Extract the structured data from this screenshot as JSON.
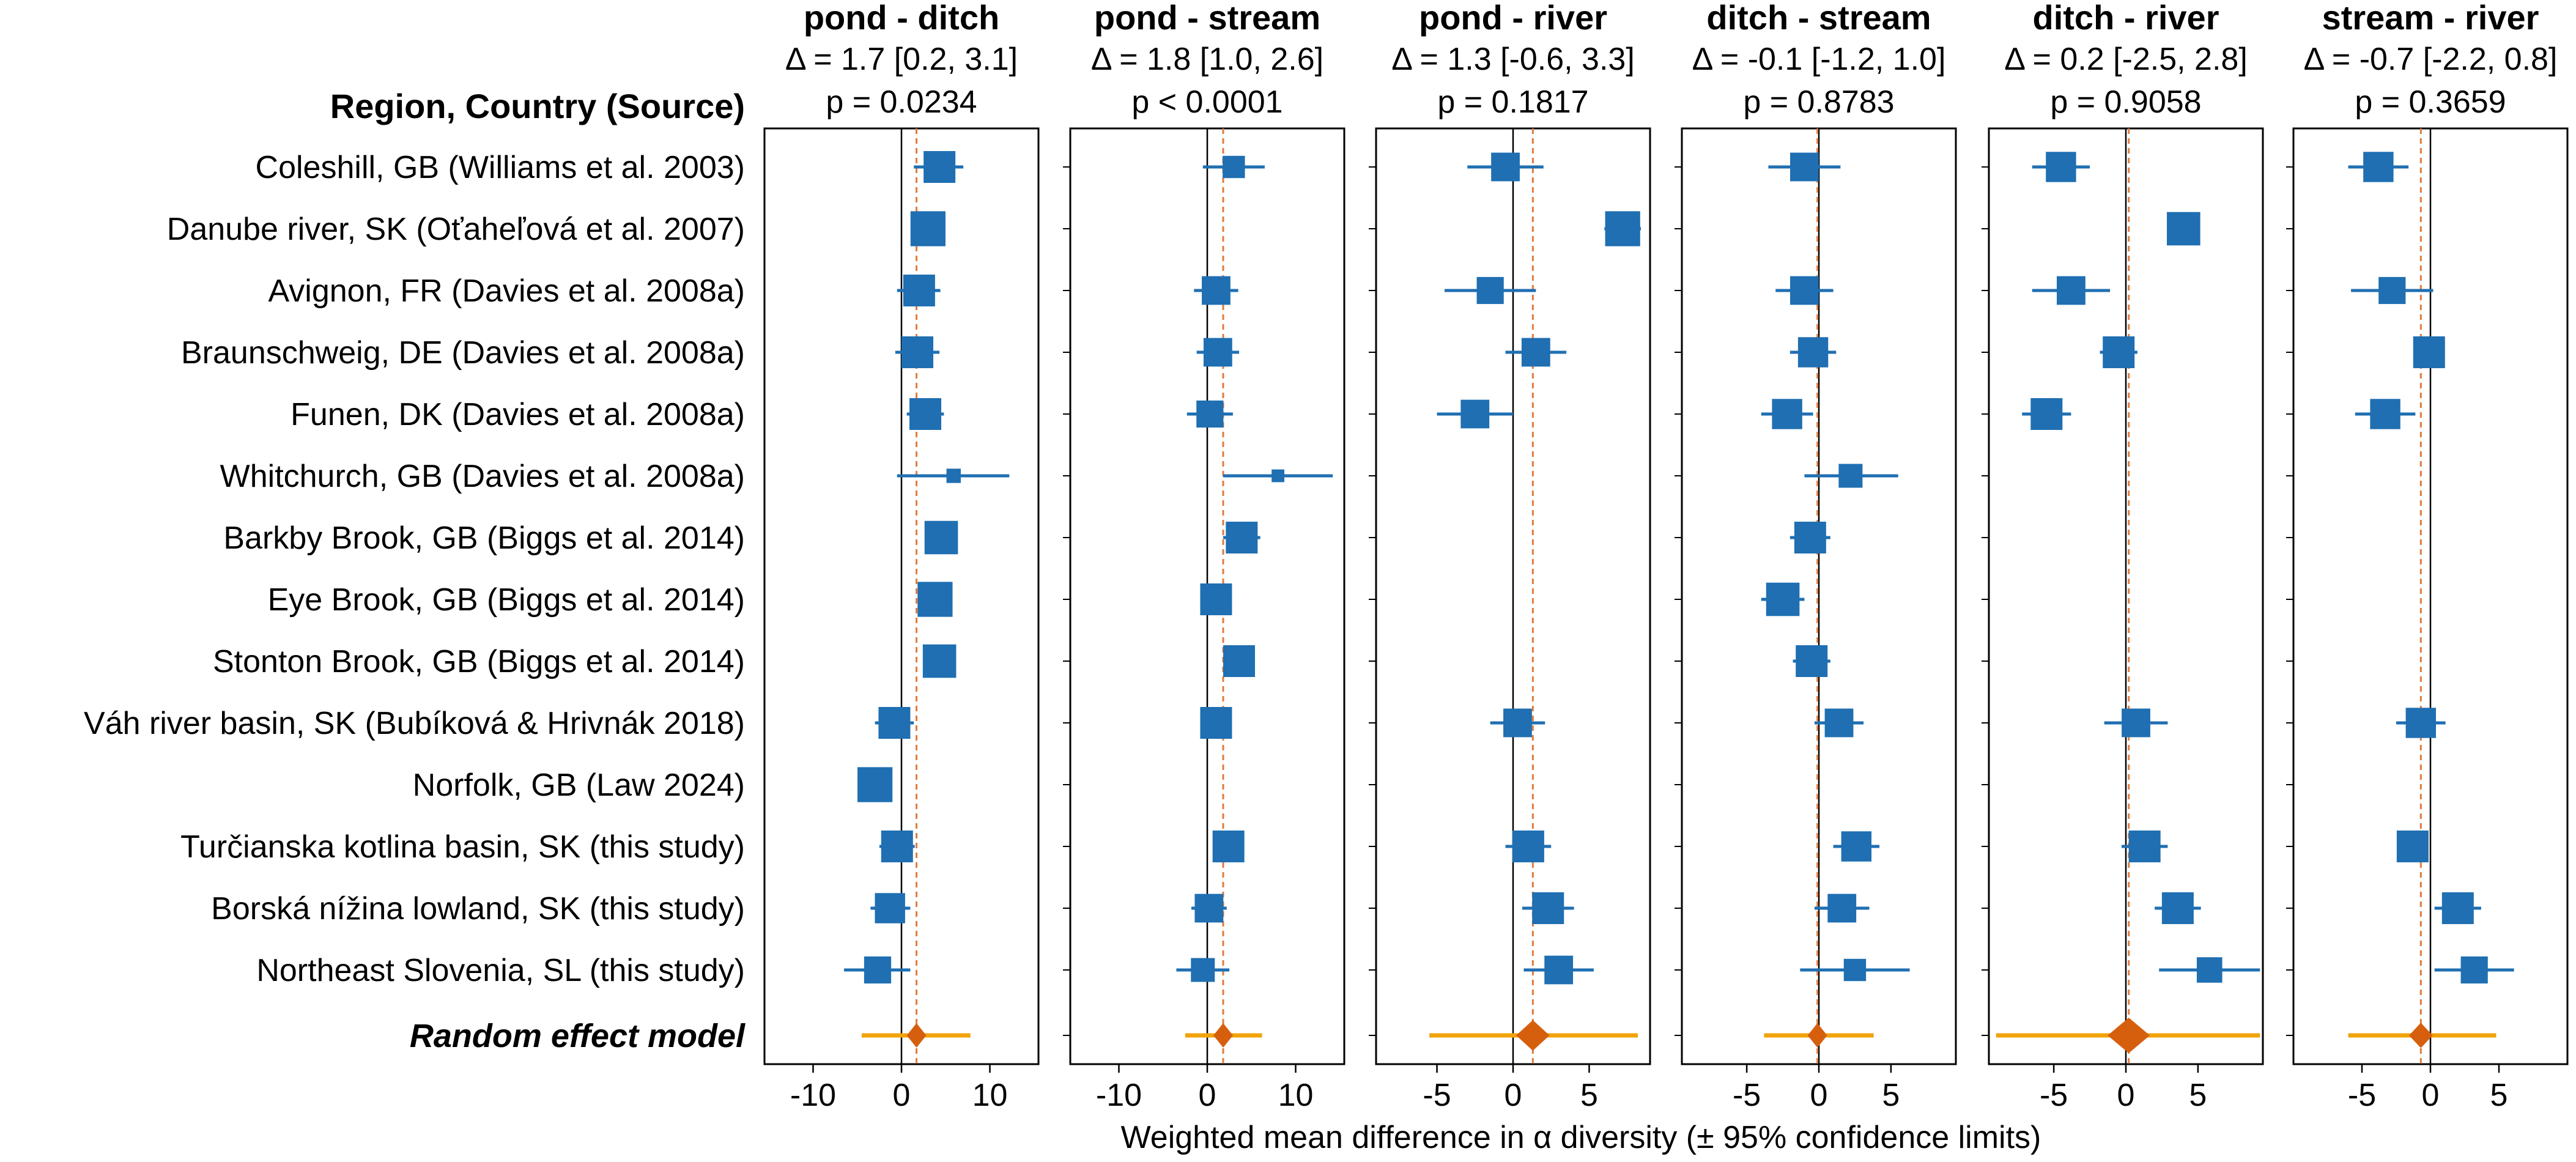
{
  "chart_data": {
    "type": "forest",
    "row_header": "Region, Country (Source)",
    "xlabel": "Weighted mean difference in α diversity (± 95% confidence limits)",
    "rows": [
      "Coleshill, GB (Williams et al. 2003)",
      "Danube river, SK (Oťaheľová et al. 2007)",
      "Avignon, FR (Davies et al. 2008a)",
      "Braunschweig, DE (Davies et al. 2008a)",
      "Funen, DK (Davies et al. 2008a)",
      "Whitchurch, GB (Davies et al. 2008a)",
      "Barkby Brook, GB (Biggs et al. 2014)",
      "Eye Brook, GB (Biggs et al. 2014)",
      "Stonton Brook, GB (Biggs et al. 2014)",
      "Váh river basin, SK (Bubíková & Hrivnák 2018)",
      "Norfolk, GB  (Law 2024)",
      "Turčianska kotlina basin, SK  (this study)",
      "Borská nížina lowland, SK (this study)",
      "Northeast Slovenia, SL (this study)"
    ],
    "model_label": "Random effect model",
    "colors": {
      "study": "#1f6fb2",
      "model_fill": "#d65f0e",
      "model_ci": "#f0a30a",
      "pooled_line": "#e07b3c",
      "zero_line": "#000000"
    },
    "panels": [
      {
        "title": "pond - ditch",
        "delta": "Δ = 1.7 [0.2, 3.1]",
        "p": "p = 0.0234",
        "xlim": [
          -15.5,
          15.5
        ],
        "ticks": [
          -10,
          0,
          10
        ],
        "pooled": 1.7,
        "model": {
          "est": 1.7,
          "ci": [
            -4.5,
            7.8
          ]
        },
        "studies": [
          {
            "est": 4.3,
            "lo": 1.4,
            "hi": 7.0,
            "w": 1
          },
          {
            "est": 3.0,
            "lo": 1.6,
            "hi": 4.4,
            "w": 1.1
          },
          {
            "est": 2.0,
            "lo": -0.5,
            "hi": 4.4,
            "w": 1
          },
          {
            "est": 1.8,
            "lo": -0.7,
            "hi": 4.3,
            "w": 1
          },
          {
            "est": 2.7,
            "lo": 0.6,
            "hi": 4.8,
            "w": 1
          },
          {
            "est": 5.9,
            "lo": -0.5,
            "hi": 12.2,
            "w": 0.45
          },
          {
            "est": 4.5,
            "lo": 3.0,
            "hi": 6.0,
            "w": 1.05
          },
          {
            "est": 3.8,
            "lo": 2.5,
            "hi": 5.1,
            "w": 1.1
          },
          {
            "est": 4.3,
            "lo": 3.0,
            "hi": 5.6,
            "w": 1.05
          },
          {
            "est": -0.8,
            "lo": -3.0,
            "hi": 1.4,
            "w": 1
          },
          {
            "est": -3.0,
            "lo": -3.4,
            "hi": -2.6,
            "w": 1.1
          },
          {
            "est": -0.5,
            "lo": -2.5,
            "hi": 1.5,
            "w": 1
          },
          {
            "est": -1.3,
            "lo": -3.5,
            "hi": 1.0,
            "w": 0.95
          },
          {
            "est": -2.7,
            "lo": -6.5,
            "hi": 1.0,
            "w": 0.85
          }
        ]
      },
      {
        "title": "pond - stream",
        "delta": "Δ = 1.8 [1.0, 2.6]",
        "p": "p < 0.0001",
        "xlim": [
          -15.5,
          15.5
        ],
        "ticks": [
          -10,
          0,
          10
        ],
        "pooled": 1.8,
        "model": {
          "est": 1.8,
          "ci": [
            -2.5,
            6.2
          ]
        },
        "studies": [
          {
            "est": 3.0,
            "lo": -0.5,
            "hi": 6.5,
            "w": 0.7
          },
          null,
          {
            "est": 1.0,
            "lo": -1.5,
            "hi": 3.5,
            "w": 0.9
          },
          {
            "est": 1.2,
            "lo": -1.2,
            "hi": 3.6,
            "w": 0.9
          },
          {
            "est": 0.3,
            "lo": -2.3,
            "hi": 2.9,
            "w": 0.85
          },
          {
            "est": 8.0,
            "lo": 1.8,
            "hi": 14.2,
            "w": 0.4
          },
          {
            "est": 3.9,
            "lo": 1.8,
            "hi": 6.0,
            "w": 1
          },
          {
            "est": 1.0,
            "lo": -0.8,
            "hi": 2.8,
            "w": 1
          },
          {
            "est": 3.6,
            "lo": 1.8,
            "hi": 5.4,
            "w": 1
          },
          {
            "est": 1.0,
            "lo": -0.4,
            "hi": 2.4,
            "w": 1
          },
          null,
          {
            "est": 2.4,
            "lo": 0.9,
            "hi": 3.9,
            "w": 1
          },
          {
            "est": 0.2,
            "lo": -1.8,
            "hi": 2.2,
            "w": 0.9
          },
          {
            "est": -0.5,
            "lo": -3.5,
            "hi": 2.5,
            "w": 0.75
          }
        ]
      },
      {
        "title": "pond - river",
        "delta": "Δ = 1.3 [-0.6, 3.3]",
        "p": "p = 0.1817",
        "xlim": [
          -9,
          9
        ],
        "ticks": [
          -5,
          0,
          5
        ],
        "pooled": 1.3,
        "model": {
          "est": 1.3,
          "ci": [
            -5.5,
            8.2
          ]
        },
        "studies": [
          {
            "est": -0.5,
            "lo": -3.0,
            "hi": 2.0,
            "w": 0.9
          },
          {
            "est": 7.2,
            "lo": 6.0,
            "hi": 8.4,
            "w": 1.1
          },
          {
            "est": -1.5,
            "lo": -4.5,
            "hi": 1.5,
            "w": 0.85
          },
          {
            "est": 1.5,
            "lo": -0.5,
            "hi": 3.5,
            "w": 0.9
          },
          {
            "est": -2.5,
            "lo": -5.0,
            "hi": 0.0,
            "w": 0.9
          },
          null,
          null,
          null,
          null,
          {
            "est": 0.3,
            "lo": -1.5,
            "hi": 2.1,
            "w": 0.9
          },
          null,
          {
            "est": 1.0,
            "lo": -0.5,
            "hi": 2.5,
            "w": 1
          },
          {
            "est": 2.3,
            "lo": 0.6,
            "hi": 4.0,
            "w": 1
          },
          {
            "est": 3.0,
            "lo": 0.7,
            "hi": 5.3,
            "w": 0.9
          }
        ]
      },
      {
        "title": "ditch - stream",
        "delta": "Δ = -0.1 [-1.2, 1.0]",
        "p": "p = 0.8783",
        "xlim": [
          -9.5,
          9.5
        ],
        "ticks": [
          -5,
          0,
          5
        ],
        "pooled": -0.1,
        "model": {
          "est": -0.1,
          "ci": [
            -3.8,
            3.8
          ]
        },
        "studies": [
          {
            "est": -1.0,
            "lo": -3.5,
            "hi": 1.5,
            "w": 0.9
          },
          null,
          {
            "est": -1.0,
            "lo": -3.0,
            "hi": 1.0,
            "w": 0.9
          },
          {
            "est": -0.4,
            "lo": -2.0,
            "hi": 1.2,
            "w": 0.95
          },
          {
            "est": -2.2,
            "lo": -4.0,
            "hi": -0.4,
            "w": 0.95
          },
          {
            "est": 2.2,
            "lo": -1.0,
            "hi": 5.5,
            "w": 0.75
          },
          {
            "est": -0.6,
            "lo": -2.0,
            "hi": 0.8,
            "w": 1
          },
          {
            "est": -2.5,
            "lo": -4.0,
            "hi": -1.0,
            "w": 1.05
          },
          {
            "est": -0.5,
            "lo": -1.8,
            "hi": 0.8,
            "w": 1
          },
          {
            "est": 1.4,
            "lo": -0.3,
            "hi": 3.1,
            "w": 0.9
          },
          null,
          {
            "est": 2.6,
            "lo": 1.0,
            "hi": 4.2,
            "w": 0.95
          },
          {
            "est": 1.6,
            "lo": -0.3,
            "hi": 3.5,
            "w": 0.9
          },
          {
            "est": 2.5,
            "lo": -1.3,
            "hi": 6.3,
            "w": 0.7
          }
        ]
      },
      {
        "title": "ditch - river",
        "delta": "Δ = 0.2 [-2.5, 2.8]",
        "p": "p = 0.9058",
        "xlim": [
          -9.5,
          9.5
        ],
        "ticks": [
          -5,
          0,
          5
        ],
        "pooled": 0.2,
        "model": {
          "est": 0.2,
          "ci": [
            -9.0,
            9.3
          ]
        },
        "studies": [
          {
            "est": -4.5,
            "lo": -6.5,
            "hi": -2.5,
            "w": 0.95
          },
          {
            "est": 4.0,
            "lo": 3.3,
            "hi": 4.7,
            "w": 1.05
          },
          {
            "est": -3.8,
            "lo": -6.5,
            "hi": -1.1,
            "w": 0.9
          },
          {
            "est": -0.5,
            "lo": -1.8,
            "hi": 0.8,
            "w": 1
          },
          {
            "est": -5.5,
            "lo": -7.2,
            "hi": -3.8,
            "w": 1
          },
          null,
          null,
          null,
          null,
          {
            "est": 0.7,
            "lo": -1.5,
            "hi": 2.9,
            "w": 0.9
          },
          null,
          {
            "est": 1.3,
            "lo": -0.3,
            "hi": 2.9,
            "w": 1
          },
          {
            "est": 3.6,
            "lo": 2.0,
            "hi": 5.2,
            "w": 1
          },
          {
            "est": 5.8,
            "lo": 2.3,
            "hi": 9.3,
            "w": 0.8
          }
        ]
      },
      {
        "title": "stream - river",
        "delta": "Δ = -0.7 [-2.2, 0.8]",
        "p": "p = 0.3659",
        "xlim": [
          -10,
          10
        ],
        "ticks": [
          -5,
          0,
          5
        ],
        "pooled": -0.7,
        "model": {
          "est": -0.7,
          "ci": [
            -6.0,
            4.8
          ]
        },
        "studies": [
          {
            "est": -3.8,
            "lo": -6.0,
            "hi": -1.6,
            "w": 0.95
          },
          null,
          {
            "est": -2.8,
            "lo": -5.8,
            "hi": 0.2,
            "w": 0.85
          },
          {
            "est": -0.1,
            "lo": -1.2,
            "hi": 1.0,
            "w": 1
          },
          {
            "est": -3.3,
            "lo": -5.5,
            "hi": -1.1,
            "w": 0.95
          },
          null,
          null,
          null,
          null,
          {
            "est": -0.7,
            "lo": -2.5,
            "hi": 1.1,
            "w": 0.95
          },
          null,
          {
            "est": -1.3,
            "lo": -2.3,
            "hi": -0.3,
            "w": 1
          },
          {
            "est": 2.0,
            "lo": 0.3,
            "hi": 3.7,
            "w": 1
          },
          {
            "est": 3.2,
            "lo": 0.3,
            "hi": 6.1,
            "w": 0.85
          }
        ]
      }
    ]
  }
}
